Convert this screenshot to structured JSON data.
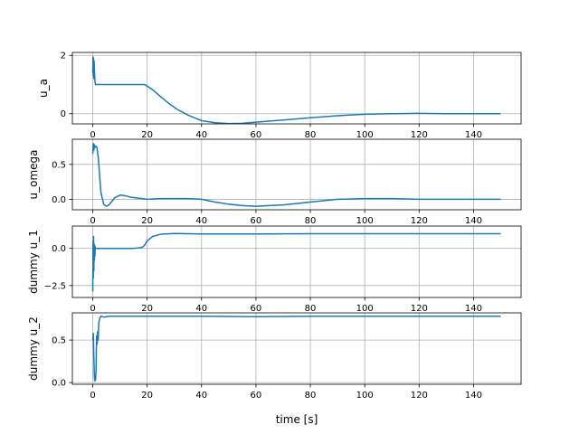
{
  "chart_data": [
    {
      "type": "line",
      "ylabel": "u_a",
      "xlabel": "",
      "xlim": [
        -7.5,
        157.5
      ],
      "ylim": [
        -0.35,
        2.1
      ],
      "xticks": [
        0,
        20,
        40,
        60,
        80,
        100,
        120,
        140
      ],
      "yticks": [
        0,
        2
      ],
      "grid": true,
      "show_xtick_labels": true,
      "color": "#1f77b4",
      "x": [
        0,
        0.1,
        0.2,
        0.3,
        0.4,
        0.5,
        0.6,
        0.8,
        1,
        2,
        5,
        10,
        15,
        19,
        20,
        22,
        25,
        28,
        31,
        35,
        40,
        45,
        50,
        55,
        60,
        70,
        80,
        90,
        100,
        110,
        120,
        130,
        140,
        150
      ],
      "y": [
        1.4,
        1.95,
        1.3,
        1.9,
        1.2,
        1.8,
        1.5,
        1.1,
        1.0,
        1.0,
        1.0,
        1.0,
        1.0,
        1.0,
        0.95,
        0.82,
        0.58,
        0.35,
        0.15,
        -0.05,
        -0.24,
        -0.31,
        -0.34,
        -0.33,
        -0.29,
        -0.22,
        -0.14,
        -0.07,
        -0.02,
        0.0,
        0.01,
        0.0,
        0.0,
        0.0
      ]
    },
    {
      "type": "line",
      "ylabel": "u_omega",
      "xlabel": "",
      "xlim": [
        -7.5,
        157.5
      ],
      "ylim": [
        -0.15,
        0.86
      ],
      "xticks": [
        0,
        20,
        40,
        60,
        80,
        100,
        120,
        140
      ],
      "yticks": [
        0.0,
        0.5
      ],
      "ytick_labels": [
        "0.0",
        "0.5"
      ],
      "grid": true,
      "show_xtick_labels": true,
      "color": "#1f77b4",
      "x": [
        0,
        0.2,
        0.4,
        0.6,
        0.8,
        1,
        1.5,
        2,
        2.5,
        3,
        4,
        5,
        6,
        7,
        8,
        10,
        12,
        14,
        16,
        20,
        25,
        30,
        35,
        40,
        45,
        50,
        55,
        60,
        65,
        70,
        80,
        90,
        100,
        110,
        120,
        130,
        140,
        150
      ],
      "y": [
        0.65,
        0.8,
        0.7,
        0.78,
        0.74,
        0.76,
        0.75,
        0.6,
        0.35,
        0.1,
        -0.07,
        -0.1,
        -0.08,
        -0.03,
        0.02,
        0.06,
        0.05,
        0.03,
        0.02,
        0.0,
        0.01,
        0.01,
        0.01,
        0.0,
        -0.04,
        -0.07,
        -0.09,
        -0.1,
        -0.09,
        -0.08,
        -0.04,
        0.0,
        0.01,
        0.01,
        0.0,
        0.0,
        0.0,
        0.0
      ]
    },
    {
      "type": "line",
      "ylabel": "dummy u_1",
      "xlabel": "",
      "xlim": [
        -7.5,
        157.5
      ],
      "ylim": [
        -3.3,
        1.5
      ],
      "xticks": [
        0,
        20,
        40,
        60,
        80,
        100,
        120,
        140
      ],
      "yticks": [
        -2.5,
        0.0
      ],
      "ytick_labels": [
        "−2.5",
        "0.0"
      ],
      "grid": true,
      "show_xtick_labels": true,
      "color": "#1f77b4",
      "x": [
        0,
        0.1,
        0.2,
        0.3,
        0.4,
        0.5,
        0.6,
        0.7,
        0.8,
        0.9,
        1.0,
        1.2,
        1.5,
        2,
        5,
        10,
        15,
        18,
        19,
        20,
        22,
        25,
        30,
        40,
        60,
        80,
        100,
        120,
        140,
        150
      ],
      "y": [
        -2.9,
        0.5,
        -2.0,
        0.8,
        -1.5,
        0.3,
        -0.8,
        0.2,
        -0.5,
        0.1,
        0.0,
        0.0,
        0.0,
        0.0,
        0.0,
        0.0,
        0.0,
        0.05,
        0.2,
        0.5,
        0.8,
        0.95,
        1.0,
        0.97,
        0.97,
        0.98,
        0.98,
        0.98,
        0.98,
        0.98
      ]
    },
    {
      "type": "line",
      "ylabel": "dummy u_2",
      "xlabel": "time [s]",
      "xlim": [
        -7.5,
        157.5
      ],
      "ylim": [
        -0.02,
        0.82
      ],
      "xticks": [
        0,
        20,
        40,
        60,
        80,
        100,
        120,
        140
      ],
      "yticks": [
        0.0,
        0.5
      ],
      "ytick_labels": [
        "0.0",
        "0.5"
      ],
      "grid": true,
      "show_xtick_labels": true,
      "color": "#1f77b4",
      "x": [
        0,
        0.2,
        0.4,
        0.6,
        0.8,
        1.0,
        1.2,
        1.4,
        1.6,
        1.8,
        2.0,
        2.2,
        2.5,
        3,
        4,
        6,
        10,
        20,
        40,
        60,
        80,
        100,
        120,
        140,
        150
      ],
      "y": [
        0.5,
        0.58,
        0.3,
        0.05,
        0.02,
        0.03,
        0.15,
        0.55,
        0.45,
        0.6,
        0.5,
        0.7,
        0.75,
        0.78,
        0.77,
        0.78,
        0.78,
        0.78,
        0.78,
        0.775,
        0.78,
        0.78,
        0.78,
        0.78,
        0.78
      ]
    }
  ]
}
